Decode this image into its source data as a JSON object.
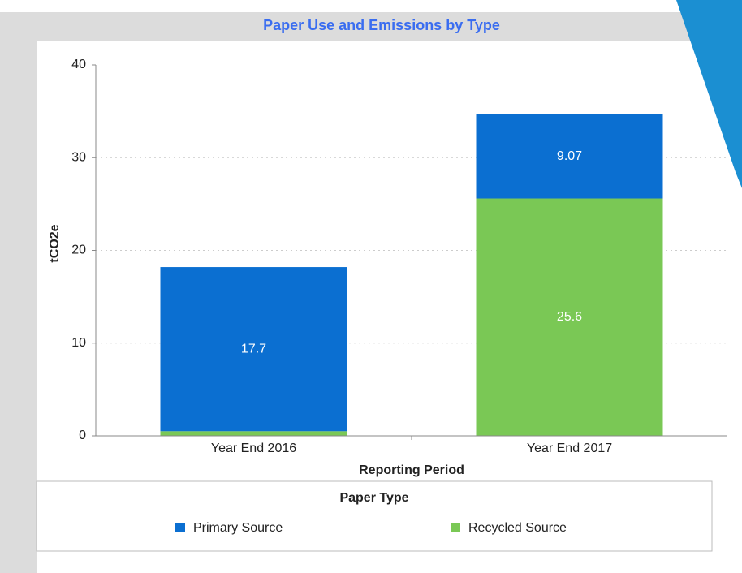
{
  "chart_data": {
    "type": "bar",
    "stacked": true,
    "title": "Paper Use and Emissions by Type",
    "x_label": "Reporting Period",
    "y_label": "tCO2e",
    "categories": [
      "Year End 2016",
      "Year End 2017"
    ],
    "series": [
      {
        "name": "Recycled Source",
        "color": "#7ac855",
        "values": [
          0.5,
          25.6
        ]
      },
      {
        "name": "Primary Source",
        "color": "#0b6fd1",
        "values": [
          17.7,
          9.07
        ]
      }
    ],
    "ylim": [
      0,
      40
    ],
    "yticks": [
      0,
      10,
      20,
      30,
      40
    ],
    "grid": true,
    "legend_title": "Paper Type",
    "legend_position": "bottom"
  }
}
